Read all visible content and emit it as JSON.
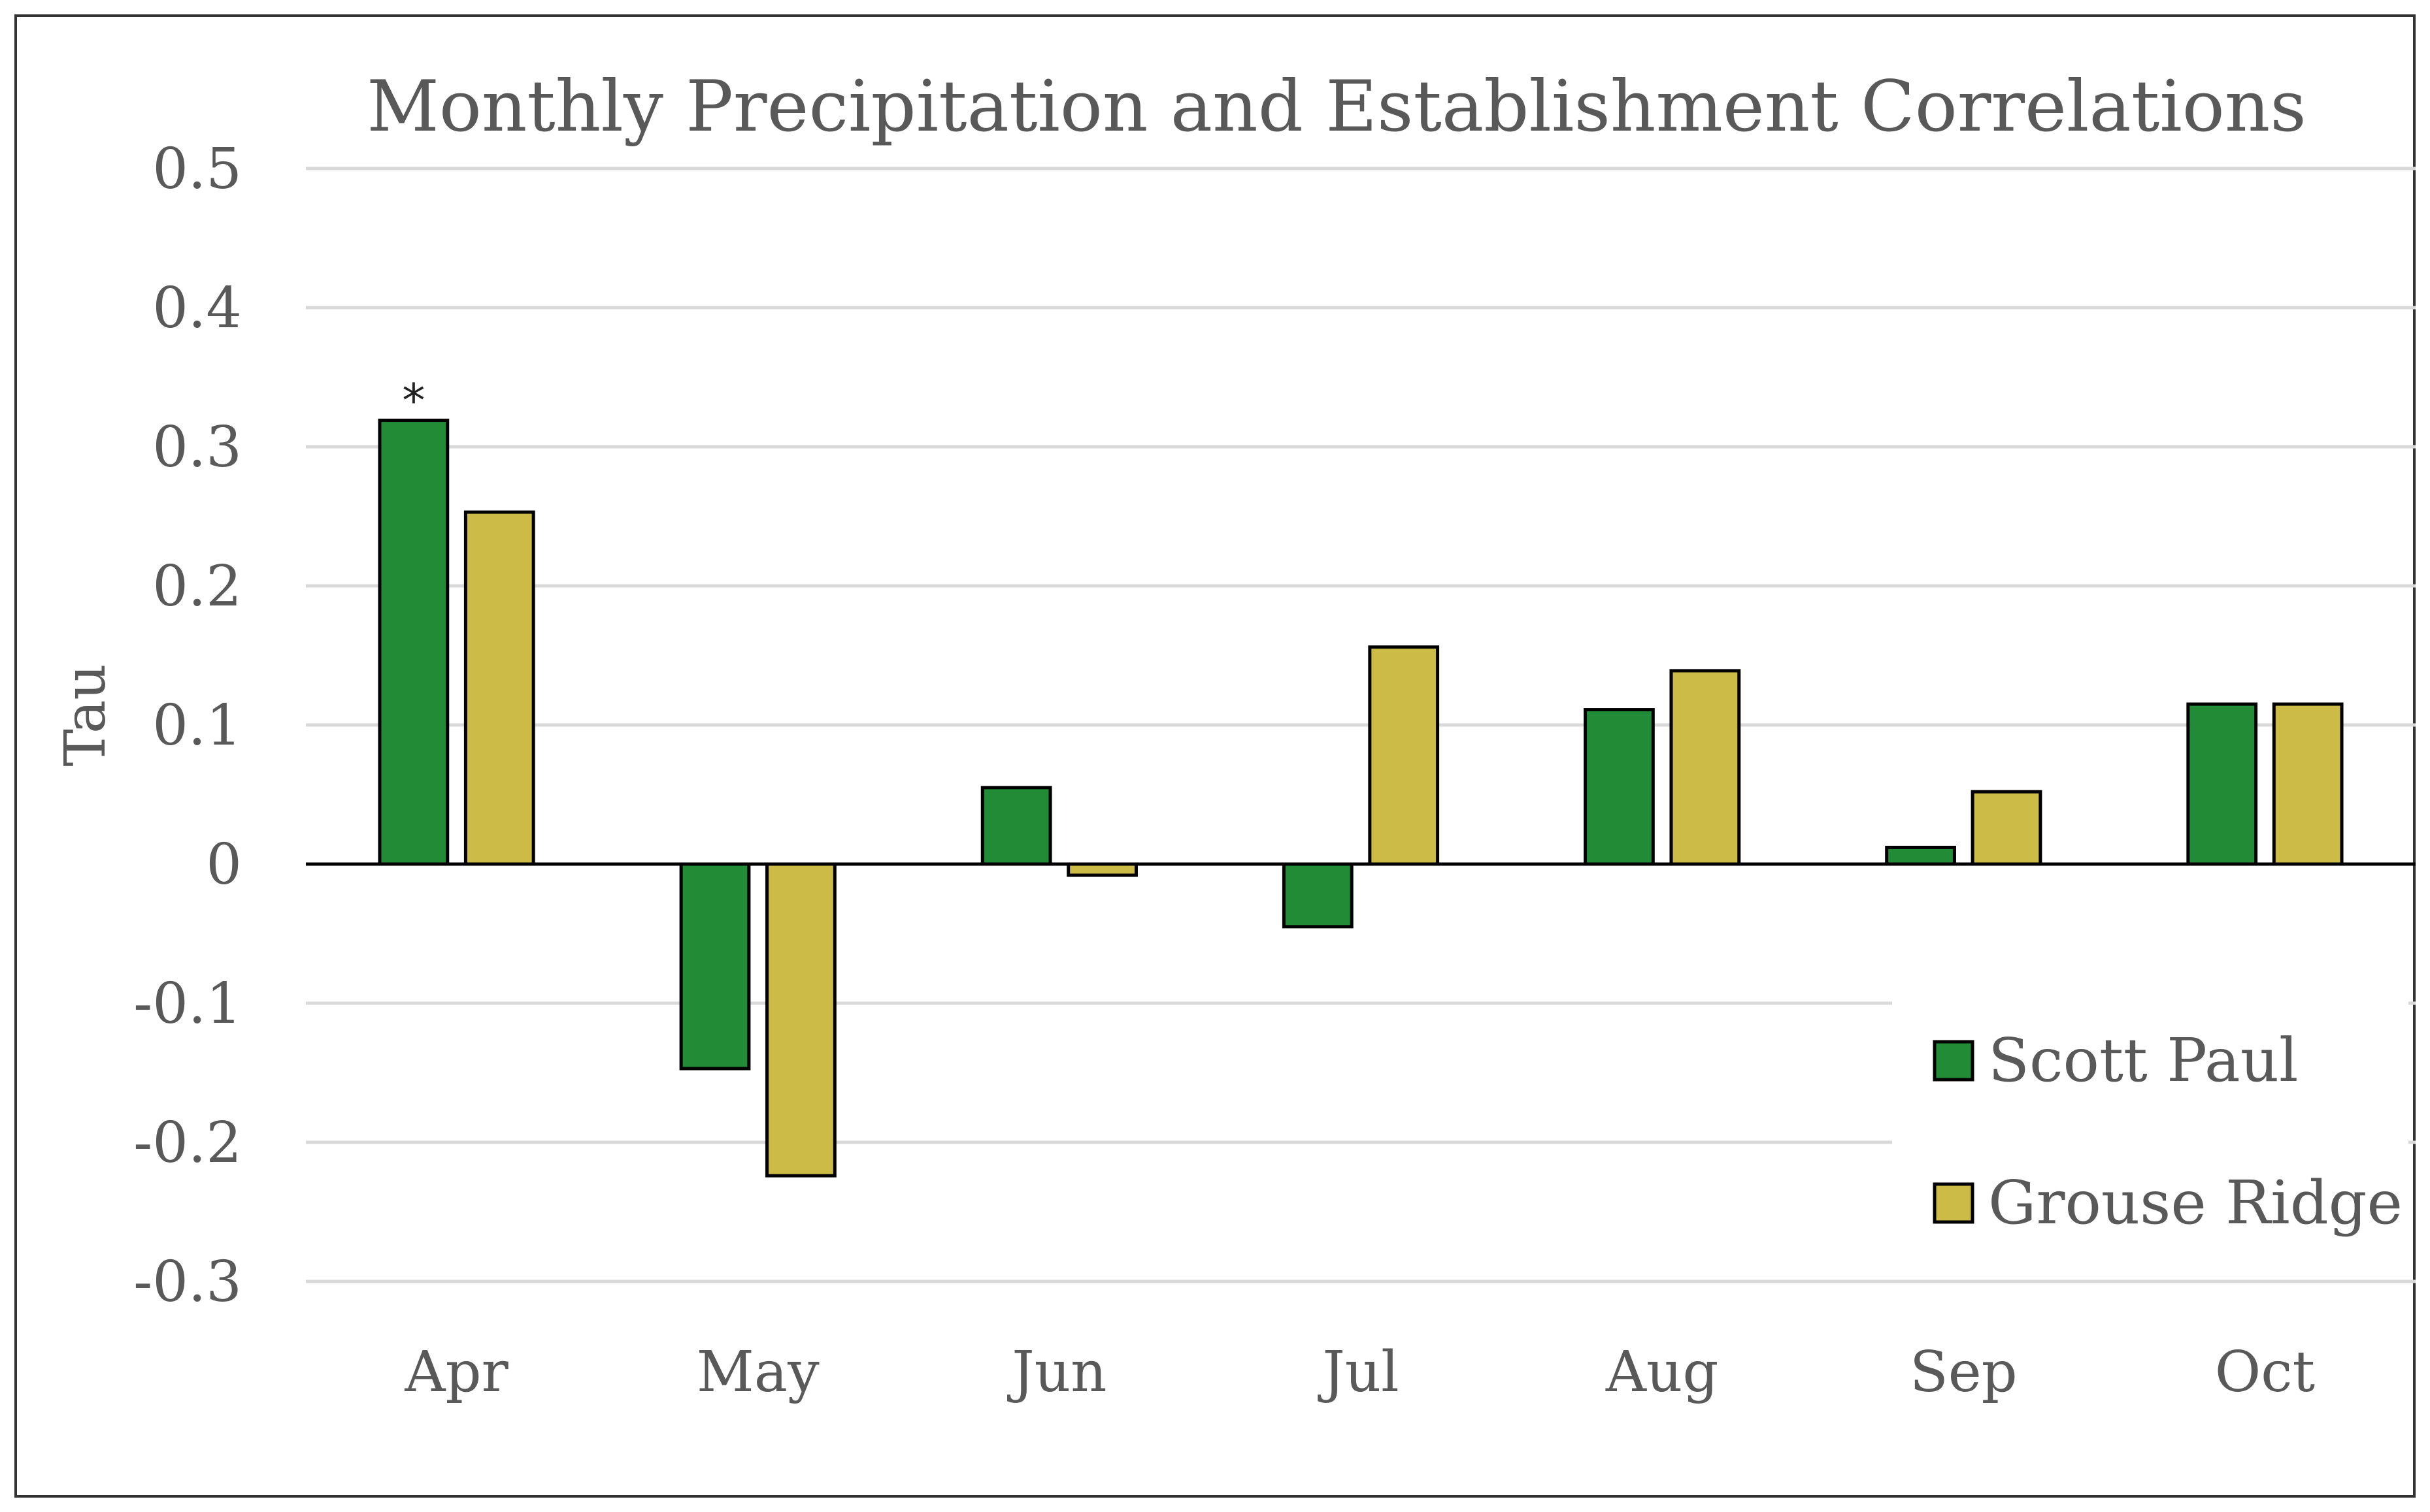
{
  "chart_data": {
    "type": "bar",
    "title": "Monthly Precipitation and Establishment Correlations",
    "xlabel": "",
    "ylabel": "Tau",
    "ylim": [
      -0.3,
      0.5
    ],
    "yticks": [
      0.5,
      0.4,
      0.3,
      0.2,
      0.1,
      0,
      -0.1,
      -0.2,
      -0.3
    ],
    "ytick_labels": [
      "0.5",
      "0.4",
      "0.3",
      "0.2",
      "0.1",
      "0",
      "-0.1",
      "-0.2",
      "-0.3"
    ],
    "grid": true,
    "categories": [
      "Apr",
      "May",
      "Jun",
      "Jul",
      "Aug",
      "Sep",
      "Oct"
    ],
    "series": [
      {
        "name": "Scott Paul",
        "color": "#228B35",
        "values": [
          0.319,
          -0.147,
          0.055,
          -0.045,
          0.111,
          0.012,
          0.115
        ]
      },
      {
        "name": "Grouse Ridge",
        "color": "#CDBB47",
        "values": [
          0.253,
          -0.224,
          -0.008,
          0.156,
          0.139,
          0.052,
          0.115
        ]
      }
    ],
    "annotations": [
      {
        "text": "*",
        "category": "Apr",
        "series": "Scott Paul"
      }
    ],
    "legend_position": "bottom-right"
  }
}
